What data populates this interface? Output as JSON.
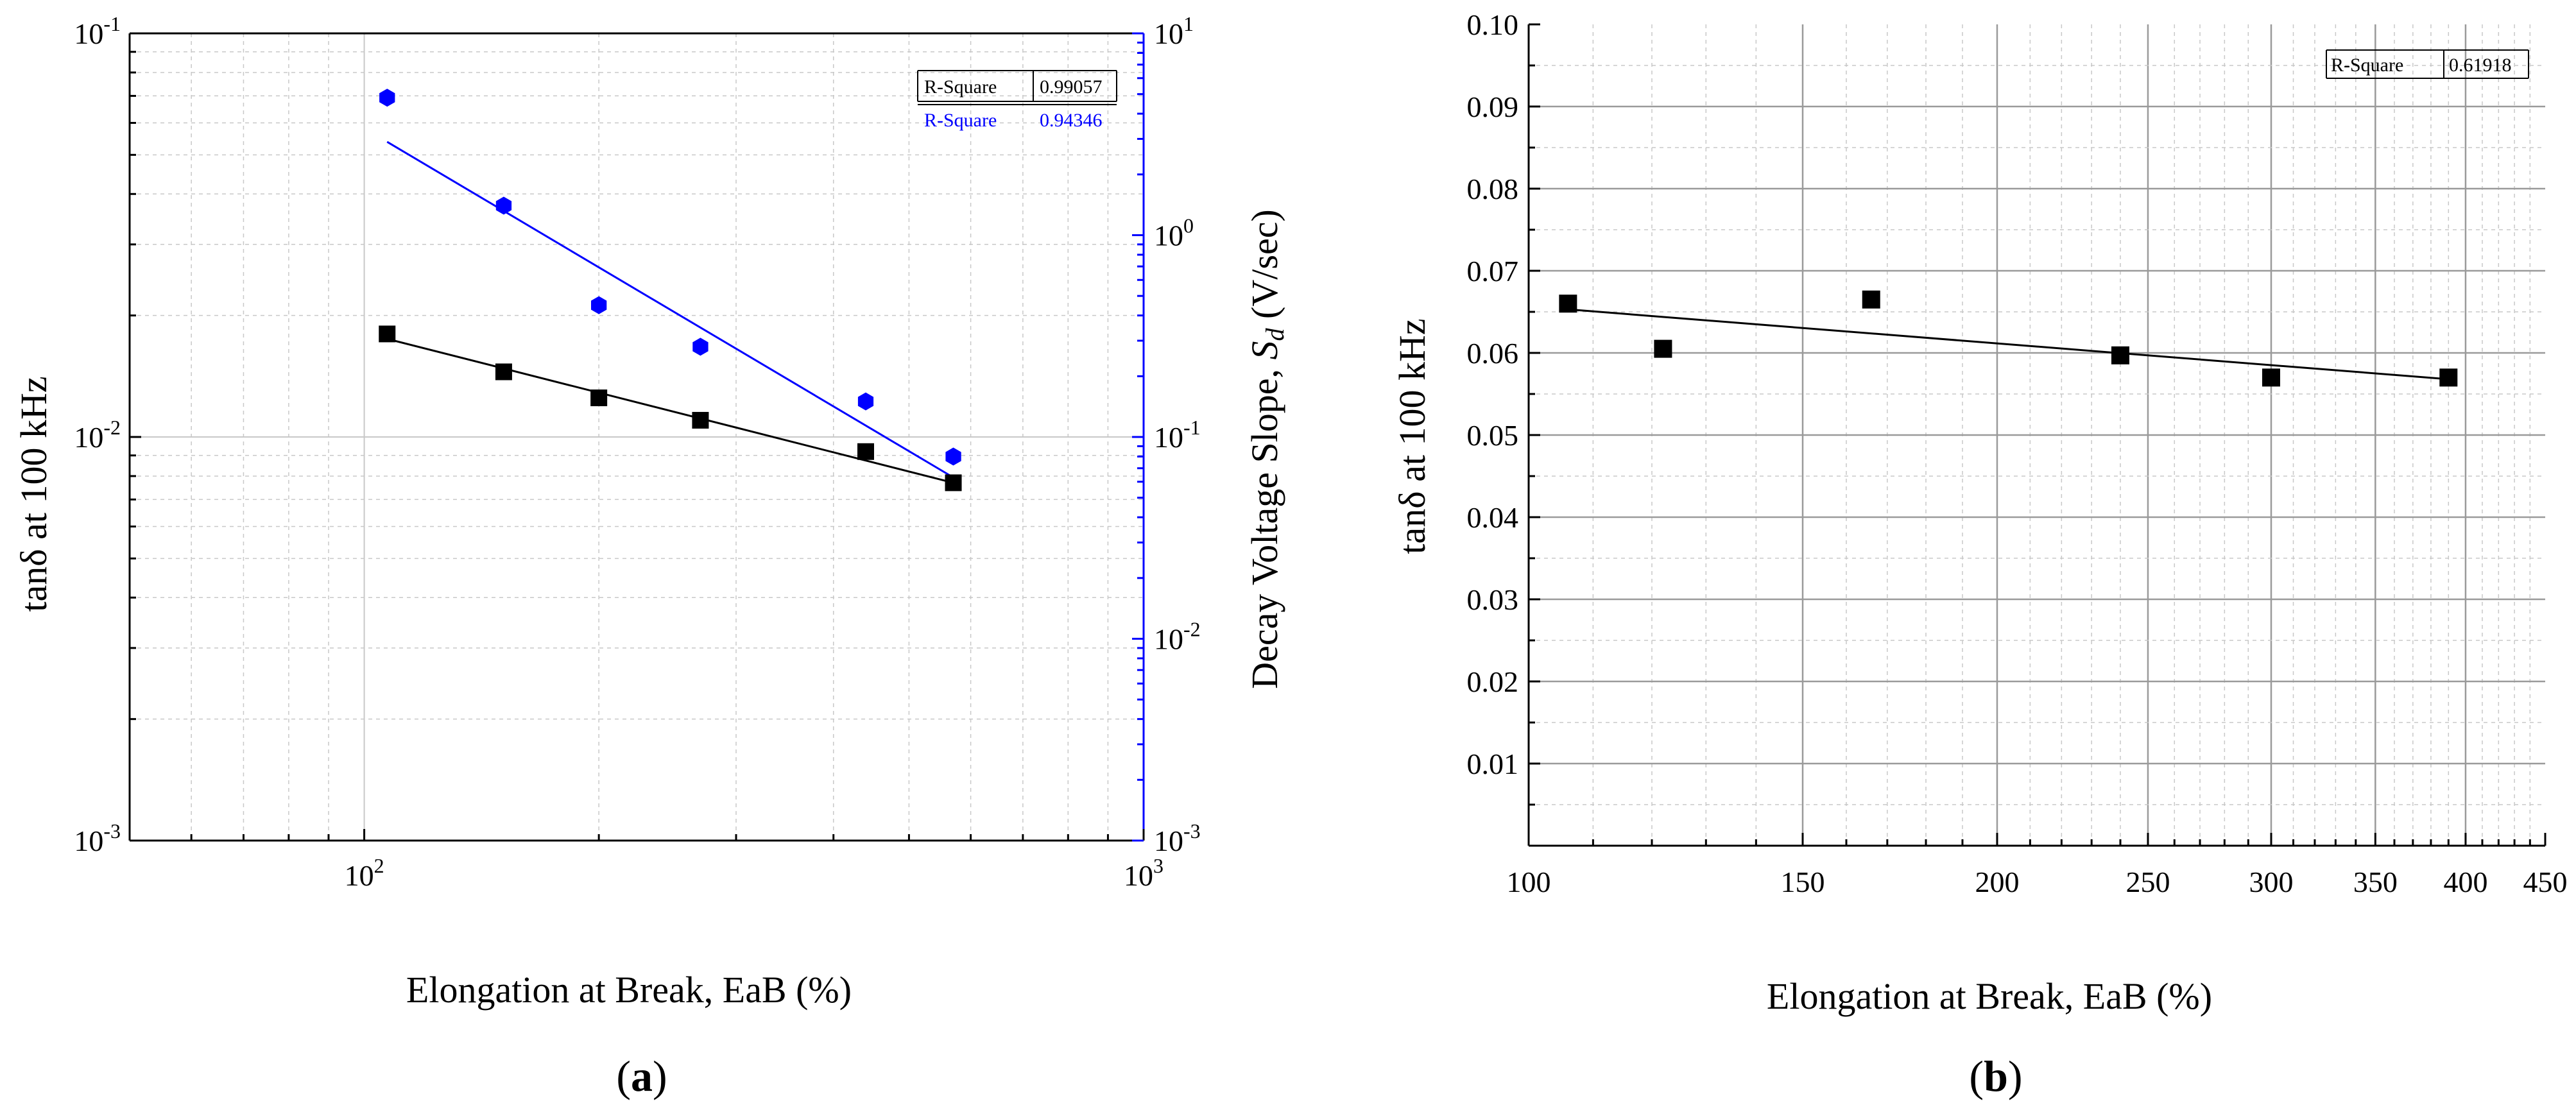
{
  "chart_data": [
    {
      "panel": "a",
      "type": "scatter",
      "caption_open": "(",
      "caption_letter": "a",
      "caption_close": ")",
      "x_scale": "log",
      "xlabel": "Elongation at Break, EaB (%)",
      "xlim": [
        50,
        1000
      ],
      "x_ticks": [
        {
          "base": "10",
          "exp": "2",
          "value": 100
        },
        {
          "base": "10",
          "exp": "3",
          "value": 1000
        }
      ],
      "ylabel_left": "tanδ at 100 kHz",
      "y_left_scale": "log",
      "y_left_lim": [
        0.001,
        0.1
      ],
      "y_left_ticks": [
        {
          "base": "10",
          "exp": "-3",
          "value": 0.001
        },
        {
          "base": "10",
          "exp": "-2",
          "value": 0.01
        },
        {
          "base": "10",
          "exp": "-1",
          "value": 0.1
        }
      ],
      "ylabel_right_prefix": "Decay Voltage Slope, ",
      "ylabel_right_symbol": "S",
      "ylabel_right_subscript": "d",
      "ylabel_right_suffix": " (V/sec)",
      "y_right_scale": "log",
      "y_right_lim": [
        0.001,
        10
      ],
      "y_right_ticks": [
        {
          "base": "10",
          "exp": "-3",
          "value": 0.001
        },
        {
          "base": "10",
          "exp": "-2",
          "value": 0.01
        },
        {
          "base": "10",
          "exp": "-1",
          "value": 0.1
        },
        {
          "base": "10",
          "exp": "0",
          "value": 1
        },
        {
          "base": "10",
          "exp": "1",
          "value": 10
        }
      ],
      "grid": true,
      "series": [
        {
          "name": "tanδ at 100 kHz",
          "axis": "left",
          "marker": "square",
          "color": "#000000",
          "x": [
            107,
            151,
            200,
            270,
            440,
            570
          ],
          "y": [
            0.018,
            0.0145,
            0.0125,
            0.011,
            0.0092,
            0.0077
          ],
          "fit": {
            "x": [
              107,
              570
            ],
            "y": [
              0.0175,
              0.0077
            ]
          }
        },
        {
          "name": "Decay Voltage Slope, Sd",
          "axis": "right",
          "marker": "hexagon",
          "color": "#0000ff",
          "x": [
            107,
            151,
            200,
            270,
            440,
            570
          ],
          "y": [
            4.8,
            1.4,
            0.45,
            0.28,
            0.15,
            0.08
          ],
          "fit": {
            "x": [
              107,
              570
            ],
            "y": [
              2.9,
              0.063
            ]
          }
        }
      ],
      "annotations": [
        {
          "label": "R-Square",
          "value": "0.99057",
          "color": "#000000"
        },
        {
          "label": "R-Square",
          "value": "0.94346",
          "color": "#0000ff"
        }
      ]
    },
    {
      "panel": "b",
      "type": "scatter",
      "caption_open": "(",
      "caption_letter": "b",
      "caption_close": ")",
      "x_scale": "log",
      "xlabel": "Elongation at Break, EaB (%)",
      "xlim": [
        100,
        450
      ],
      "x_ticks": [
        "100",
        "150",
        "200",
        "250",
        "300",
        "350",
        "400",
        "450"
      ],
      "ylabel": "tanδ at 100 kHz",
      "y_scale": "linear",
      "ylim": [
        0,
        0.1
      ],
      "y_ticks": [
        "0.01",
        "0.02",
        "0.03",
        "0.04",
        "0.05",
        "0.06",
        "0.07",
        "0.08",
        "0.09",
        "0.10"
      ],
      "grid": true,
      "series": [
        {
          "name": "tanδ at 100 kHz",
          "marker": "square",
          "color": "#000000",
          "x": [
            106,
            122,
            166,
            240,
            300,
            390
          ],
          "y": [
            0.066,
            0.0605,
            0.0665,
            0.0597,
            0.057,
            0.057
          ],
          "fit": {
            "x": [
              106,
              390
            ],
            "y": [
              0.0653,
              0.0568
            ]
          }
        }
      ],
      "annotations": [
        {
          "label": "R-Square",
          "value": "0.61918",
          "color": "#000000"
        }
      ]
    }
  ]
}
